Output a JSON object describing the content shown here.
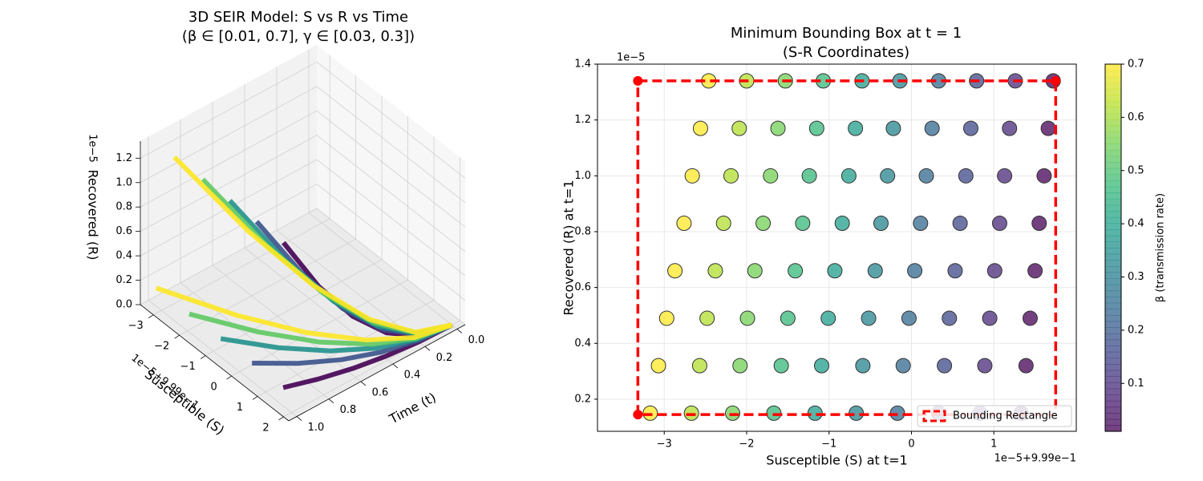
{
  "chart_data": [
    {
      "type": "surface3d",
      "title": [
        "3D SEIR Model: S vs R vs Time",
        "(β ∈ [0.01, 0.7], γ ∈ [0.03, 0.3])"
      ],
      "xlabel": "Susceptible (S)",
      "ylabel": "Time (t)",
      "zlabel": "Recovered (R)",
      "x_offset_label": "1e−5+9.99e−1",
      "z_offset_label": "1e−5",
      "xlim": [
        -3.5,
        2.2
      ],
      "ylim": [
        -0.05,
        1.05
      ],
      "zlim": [
        0,
        1.34
      ],
      "xticks": [
        {
          "value": -3,
          "label": "−3"
        },
        {
          "value": -2,
          "label": "−2"
        },
        {
          "value": -1,
          "label": "−1"
        },
        0,
        1,
        2
      ],
      "yticks": [
        {
          "value": 0,
          "label": "0.0"
        },
        0.2,
        0.4,
        0.6,
        0.8,
        {
          "value": 1,
          "label": "1.0"
        }
      ],
      "zticks": [
        {
          "value": 0,
          "label": "0.0"
        },
        0.2,
        0.4,
        0.6,
        0.8,
        {
          "value": 1,
          "label": "1.0"
        },
        1.2
      ],
      "grid": true,
      "t": [
        0,
        0.2,
        0.4,
        0.6,
        0.8,
        1.0
      ],
      "curves": [
        {
          "color": "#440154",
          "s": [
            2,
            1.987,
            1.949,
            1.885,
            1.795,
            1.68
          ],
          "r": [
            0,
            0.006,
            0.024,
            0.054,
            0.096,
            0.15
          ]
        },
        {
          "color": "#440154",
          "s": [
            2,
            1.988,
            1.95,
            1.888,
            1.802,
            1.69
          ],
          "r": [
            0,
            0.054,
            0.214,
            0.482,
            0.858,
            1.34
          ]
        },
        {
          "color": "#3b528b",
          "s": [
            2,
            1.939,
            1.757,
            1.453,
            1.027,
            0.48
          ],
          "r": [
            0,
            0.006,
            0.024,
            0.054,
            0.096,
            0.15
          ]
        },
        {
          "color": "#3b528b",
          "s": [
            2,
            1.946,
            1.786,
            1.518,
            1.142,
            0.66
          ],
          "r": [
            0,
            0.054,
            0.214,
            0.482,
            0.858,
            1.34
          ]
        },
        {
          "color": "#21918c",
          "s": [
            2,
            1.891,
            1.565,
            1.021,
            0.259,
            -0.72
          ],
          "r": [
            0,
            0.006,
            0.024,
            0.054,
            0.096,
            0.15
          ]
        },
        {
          "color": "#21918c",
          "s": [
            2,
            1.905,
            1.621,
            1.147,
            0.483,
            -0.37
          ],
          "r": [
            0,
            0.054,
            0.214,
            0.482,
            0.858,
            1.34
          ]
        },
        {
          "color": "#5ec962",
          "s": [
            2,
            1.843,
            1.371,
            0.585,
            -0.515,
            -1.93
          ],
          "r": [
            0,
            0.006,
            0.024,
            0.054,
            0.096,
            0.15
          ]
        },
        {
          "color": "#5ec962",
          "s": [
            2,
            1.864,
            1.454,
            0.772,
            -0.182,
            -1.41
          ],
          "r": [
            0,
            0.054,
            0.214,
            0.482,
            0.858,
            1.34
          ]
        },
        {
          "color": "#fde725",
          "s": [
            2,
            1.792,
            1.168,
            0.128,
            -1.328,
            -3.2
          ],
          "r": [
            0,
            0.006,
            0.024,
            0.054,
            0.096,
            0.15
          ]
        },
        {
          "color": "#fde725",
          "s": [
            2,
            1.82,
            1.28,
            0.38,
            -0.88,
            -2.5
          ],
          "r": [
            0,
            0.054,
            0.214,
            0.482,
            0.858,
            1.34
          ]
        }
      ]
    },
    {
      "type": "scatter",
      "title": [
        "Minimum Bounding Box at t = 1",
        "(S-R Coordinates)"
      ],
      "xlabel": "Susceptible (S) at t=1",
      "ylabel": "Recovered (R) at t=1",
      "x_offset_label": "1e−5+9.99e−1",
      "y_offset_label": "1e−5",
      "xlim": [
        -3.81,
        2.0
      ],
      "ylim": [
        0.085,
        1.4
      ],
      "xticks": [
        {
          "value": -3,
          "label": "−3"
        },
        {
          "value": -2,
          "label": "−2"
        },
        {
          "value": -1,
          "label": "−1"
        },
        0,
        1
      ],
      "yticks": [
        0.2,
        0.4,
        0.6,
        0.8,
        {
          "value": 1,
          "label": "1.0"
        },
        1.2,
        1.4
      ],
      "grid": true,
      "x": [
        -3.17,
        -2.67,
        -2.17,
        -1.67,
        -1.17,
        -0.67,
        -0.17,
        0.33,
        0.83,
        1.33,
        -3.07,
        -2.57,
        -2.08,
        -1.58,
        -1.09,
        -0.59,
        -0.1,
        0.4,
        0.89,
        1.39,
        -2.97,
        -2.48,
        -1.99,
        -1.5,
        -1.01,
        -0.52,
        -0.03,
        0.46,
        0.95,
        1.44,
        -2.87,
        -2.38,
        -1.9,
        -1.41,
        -0.93,
        -0.44,
        0.04,
        0.53,
        1.01,
        1.5,
        -2.76,
        -2.28,
        -1.8,
        -1.32,
        -0.84,
        -0.37,
        0.11,
        0.59,
        1.07,
        1.55,
        -2.66,
        -2.19,
        -1.71,
        -1.24,
        -0.76,
        -0.29,
        0.18,
        0.66,
        1.13,
        1.61,
        -2.56,
        -2.09,
        -1.62,
        -1.15,
        -0.68,
        -0.22,
        0.25,
        0.72,
        1.19,
        1.66,
        -2.46,
        -2.0,
        -1.53,
        -1.07,
        -0.6,
        -0.14,
        0.33,
        0.79,
        1.26,
        1.72
      ],
      "values": [
        0.15,
        0.15,
        0.15,
        0.15,
        0.15,
        0.15,
        0.15,
        0.15,
        0.15,
        0.15,
        0.32,
        0.32,
        0.32,
        0.32,
        0.32,
        0.32,
        0.32,
        0.32,
        0.32,
        0.32,
        0.49,
        0.49,
        0.49,
        0.49,
        0.49,
        0.49,
        0.49,
        0.49,
        0.49,
        0.49,
        0.66,
        0.66,
        0.66,
        0.66,
        0.66,
        0.66,
        0.66,
        0.66,
        0.66,
        0.66,
        0.83,
        0.83,
        0.83,
        0.83,
        0.83,
        0.83,
        0.83,
        0.83,
        0.83,
        0.83,
        1.0,
        1.0,
        1.0,
        1.0,
        1.0,
        1.0,
        1.0,
        1.0,
        1.0,
        1.0,
        1.17,
        1.17,
        1.17,
        1.17,
        1.17,
        1.17,
        1.17,
        1.17,
        1.17,
        1.17,
        1.34,
        1.34,
        1.34,
        1.34,
        1.34,
        1.34,
        1.34,
        1.34,
        1.34,
        1.34
      ],
      "c": [
        0.7,
        0.62,
        0.55,
        0.47,
        0.39,
        0.32,
        0.24,
        0.16,
        0.09,
        0.01,
        0.7,
        0.62,
        0.55,
        0.47,
        0.39,
        0.32,
        0.24,
        0.16,
        0.09,
        0.01,
        0.7,
        0.62,
        0.55,
        0.47,
        0.39,
        0.32,
        0.24,
        0.16,
        0.09,
        0.01,
        0.7,
        0.62,
        0.55,
        0.47,
        0.39,
        0.32,
        0.24,
        0.16,
        0.09,
        0.01,
        0.7,
        0.62,
        0.55,
        0.47,
        0.39,
        0.32,
        0.24,
        0.16,
        0.09,
        0.01,
        0.7,
        0.62,
        0.55,
        0.47,
        0.39,
        0.32,
        0.24,
        0.16,
        0.09,
        0.01,
        0.7,
        0.62,
        0.55,
        0.47,
        0.39,
        0.32,
        0.24,
        0.16,
        0.09,
        0.01,
        0.7,
        0.62,
        0.55,
        0.47,
        0.39,
        0.32,
        0.24,
        0.16,
        0.09,
        0.01
      ],
      "colormap": "viridis",
      "clim": [
        0.01,
        0.7
      ],
      "cticks": [
        0.1,
        0.2,
        0.3,
        0.4,
        0.5,
        0.6,
        0.7
      ],
      "clabel": "β (transmission rate)",
      "bbox": {
        "name": "Bounding Rectangle",
        "color": "#ff0000",
        "xmin": -3.32,
        "xmax": 1.75,
        "ymin": 0.145,
        "ymax": 1.34
      },
      "legend": "lower right"
    }
  ]
}
